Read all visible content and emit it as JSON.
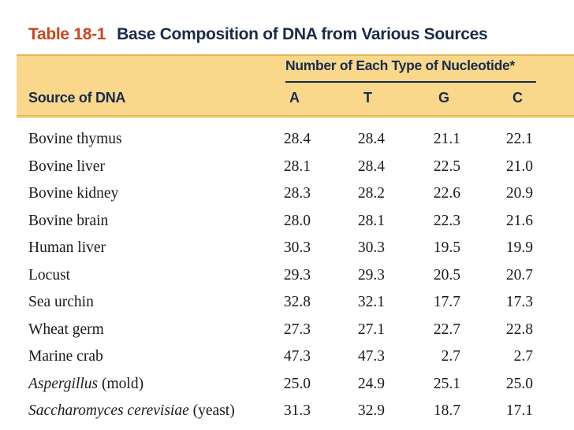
{
  "caption": {
    "number": "Table 18-1",
    "title": "Base Composition of DNA from Various Sources"
  },
  "header": {
    "spanner": "Number of Each Type of Nucleotide*",
    "source_label": "Source of DNA",
    "columns": [
      "A",
      "T",
      "G",
      "C"
    ]
  },
  "rows": [
    {
      "source": "Bovine thymus",
      "italic": "",
      "suffix": "",
      "A": "28.4",
      "T": "28.4",
      "G": "21.1",
      "C": "22.1"
    },
    {
      "source": "Bovine liver",
      "italic": "",
      "suffix": "",
      "A": "28.1",
      "T": "28.4",
      "G": "22.5",
      "C": "21.0"
    },
    {
      "source": "Bovine kidney",
      "italic": "",
      "suffix": "",
      "A": "28.3",
      "T": "28.2",
      "G": "22.6",
      "C": "20.9"
    },
    {
      "source": "Bovine brain",
      "italic": "",
      "suffix": "",
      "A": "28.0",
      "T": "28.1",
      "G": "22.3",
      "C": "21.6"
    },
    {
      "source": "Human liver",
      "italic": "",
      "suffix": "",
      "A": "30.3",
      "T": "30.3",
      "G": "19.5",
      "C": "19.9"
    },
    {
      "source": "Locust",
      "italic": "",
      "suffix": "",
      "A": "29.3",
      "T": "29.3",
      "G": "20.5",
      "C": "20.7"
    },
    {
      "source": "Sea urchin",
      "italic": "",
      "suffix": "",
      "A": "32.8",
      "T": "32.1",
      "G": "17.7",
      "C": "17.3"
    },
    {
      "source": "Wheat germ",
      "italic": "",
      "suffix": "",
      "A": "27.3",
      "T": "27.1",
      "G": "22.7",
      "C": "22.8"
    },
    {
      "source": "Marine crab",
      "italic": "",
      "suffix": "",
      "A": "47.3",
      "T": "47.3",
      "G": "2.7",
      "C": "2.7"
    },
    {
      "source": "",
      "italic": "Aspergillus",
      "suffix": " (mold)",
      "A": "25.0",
      "T": "24.9",
      "G": "25.1",
      "C": "25.0"
    },
    {
      "source": "",
      "italic": "Saccharomyces cerevisiae",
      "suffix": " (yeast)",
      "A": "31.3",
      "T": "32.9",
      "G": "18.7",
      "C": "17.1"
    }
  ]
}
